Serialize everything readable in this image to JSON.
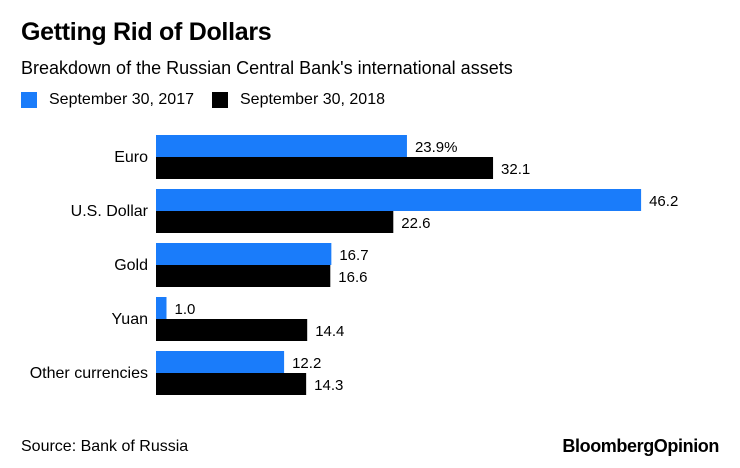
{
  "header": {
    "title": "Getting Rid of Dollars",
    "subtitle": "Breakdown of the Russian Central Bank's international assets"
  },
  "chart_data": {
    "type": "bar",
    "orientation": "horizontal",
    "categories": [
      "Euro",
      "U.S. Dollar",
      "Gold",
      "Yuan",
      "Other currencies"
    ],
    "series": [
      {
        "name": "September 30, 2017",
        "color": "#1a7cfa",
        "values": [
          23.9,
          46.2,
          16.7,
          1.0,
          12.2
        ],
        "labels": [
          "23.9%",
          "46.2",
          "16.7",
          "1.0",
          "12.2"
        ]
      },
      {
        "name": "September 30, 2018",
        "color": "#000000",
        "values": [
          32.1,
          22.6,
          16.6,
          14.4,
          14.3
        ],
        "labels": [
          "32.1",
          "22.6",
          "16.6",
          "14.4",
          "14.3"
        ]
      }
    ],
    "xlim": [
      0,
      50
    ],
    "xlabel": "",
    "ylabel": "",
    "unit": "%",
    "grid": false,
    "legend_position": "top-left"
  },
  "footer": {
    "source": "Source: Bank of Russia",
    "brand": "BloombergOpinion"
  }
}
